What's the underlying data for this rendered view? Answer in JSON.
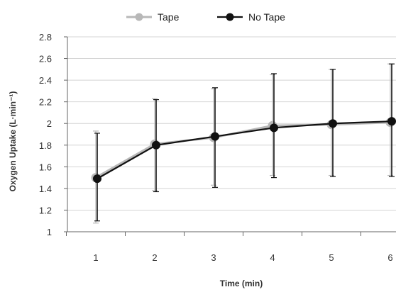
{
  "chart_data": {
    "type": "line",
    "x": [
      1,
      2,
      3,
      4,
      5,
      6
    ],
    "xlabel": "Time (min)",
    "ylabel": "Oxygen Uptake (L·min⁻¹)",
    "ylim": [
      1,
      2.8
    ],
    "yticks": [
      "1",
      "1.2",
      "1.4",
      "1.6",
      "1.8",
      "2",
      "2.2",
      "2.4",
      "2.6",
      "2.8"
    ],
    "xticks": [
      "1",
      "2",
      "3",
      "4",
      "5",
      "6"
    ],
    "grid": true,
    "legend_position": "top",
    "series": [
      {
        "name": "Tape",
        "color": "#b8b8b8",
        "marker": "circle",
        "values": [
          1.5,
          1.81,
          1.87,
          1.98,
          1.99,
          2.01
        ],
        "error_low": [
          1.08,
          1.38,
          1.43,
          1.52,
          1.52,
          1.52
        ],
        "error_high": [
          1.93,
          2.23,
          2.32,
          2.45,
          2.5,
          2.55
        ]
      },
      {
        "name": "No Tape",
        "color": "#111111",
        "marker": "circle",
        "values": [
          1.49,
          1.8,
          1.88,
          1.96,
          2.0,
          2.02
        ],
        "error_low": [
          1.1,
          1.37,
          1.41,
          1.5,
          1.51,
          1.51
        ],
        "error_high": [
          1.91,
          2.22,
          2.33,
          2.46,
          2.5,
          2.55
        ]
      }
    ]
  }
}
